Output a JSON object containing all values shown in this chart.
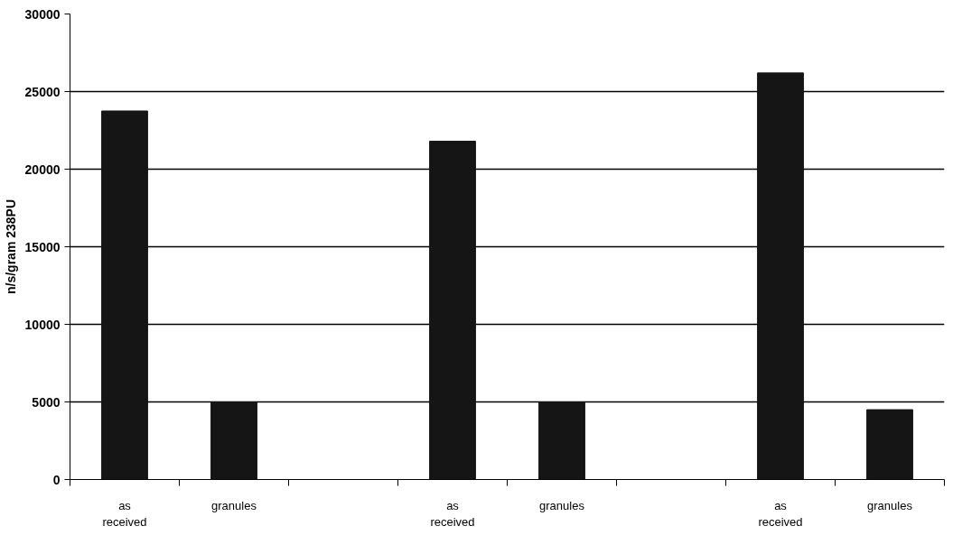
{
  "chart_data": {
    "type": "bar",
    "ylabel": "n/s/gram 238PU",
    "categories": [
      "as received",
      "granules",
      null,
      "as received",
      "granules",
      null,
      "as received",
      "granules"
    ],
    "values": [
      23750,
      5000,
      null,
      21800,
      5000,
      null,
      26200,
      4500
    ],
    "color": "#151515",
    "ylim": [
      0,
      30000
    ],
    "yticks": [
      0,
      5000,
      10000,
      15000,
      20000,
      25000,
      30000
    ],
    "grid": "y"
  }
}
